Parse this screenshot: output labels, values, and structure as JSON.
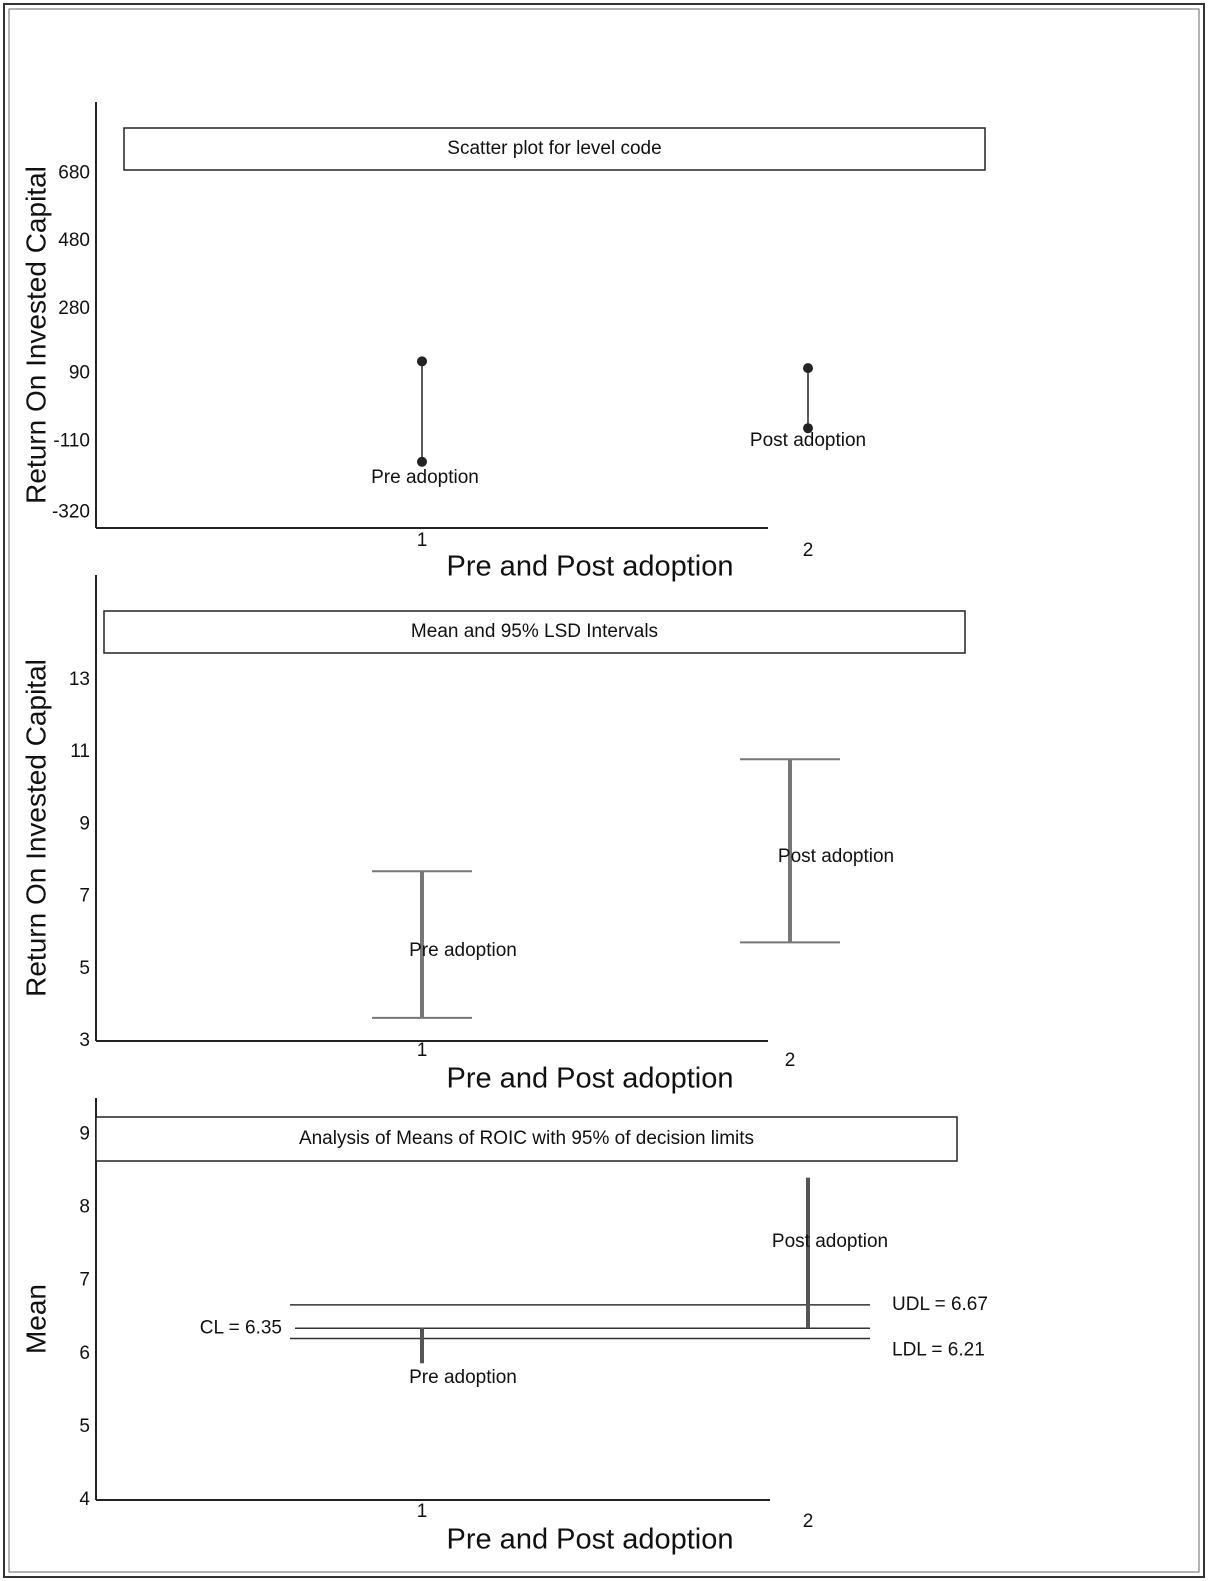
{
  "chart_data": [
    {
      "type": "dumbbell",
      "title": "Scatter plot for level code",
      "ylabel": "Return On Invested Capital",
      "xlabel": "Pre and Post adoption",
      "categories": [
        "1",
        "2"
      ],
      "point_labels": [
        "Pre adoption",
        "Post adoption"
      ],
      "low": [
        -170,
        -71
      ],
      "high": [
        126,
        106
      ],
      "color": "#222222",
      "ylim": [
        -365,
        890
      ],
      "yticks": [
        -320,
        -110,
        90,
        280,
        480,
        680
      ]
    },
    {
      "type": "interval",
      "title": "Mean and 95% LSD Intervals",
      "ylabel": "Return On Invested Capital",
      "xlabel": "Pre and Post adoption",
      "categories": [
        "1",
        "2"
      ],
      "point_labels": [
        "Pre adoption",
        "Post adoption"
      ],
      "low": [
        3.64,
        5.73
      ],
      "high": [
        7.7,
        10.8
      ],
      "color": "#777777",
      "ylim": [
        3,
        15.9
      ],
      "yticks": [
        3,
        5,
        7,
        9,
        11,
        13
      ]
    },
    {
      "type": "anom",
      "title": "Analysis of Means of ROIC with 95% of decision limits",
      "ylabel": "Mean",
      "xlabel": "Pre and Post adoption",
      "categories": [
        "1",
        "2"
      ],
      "point_labels": [
        "Pre adoption",
        "Post adoption"
      ],
      "values": [
        5.87,
        8.41
      ],
      "color": "#555555",
      "limits": [
        {
          "label": "CL = 6.35",
          "value": 6.35
        },
        {
          "label": "UDL = 6.67",
          "value": 6.67
        },
        {
          "label": "LDL = 6.21",
          "value": 6.21
        }
      ],
      "ylim": [
        4,
        9.5
      ],
      "yticks": [
        4,
        5,
        6,
        7,
        8,
        9
      ]
    }
  ]
}
